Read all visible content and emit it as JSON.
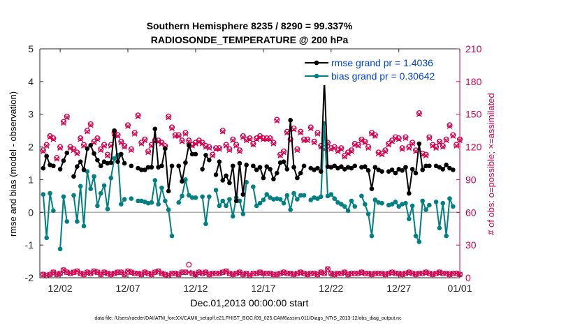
{
  "chart_data": {
    "type": "line",
    "title_line1": "Southern Hemisphere 8235 / 8290 = 99.337%",
    "title_line2": "RADIOSONDE_TEMPERATURE @ 200 hPa",
    "ylabel_left": "rmse and bias (model - observation)",
    "ylabel_right": "# of obs: o=possible; ×=assimilated",
    "xlabel": "Dec.01,2013 00:00:00 start",
    "footer": "data file: /Users/raeder/DAI/ATM_forcXX/CAM6_setup/f.e21.FHIST_BGC.f09_025.CAM6assim.011/Diags_NTrS_2013-12/obs_diag_output.nc",
    "ylim_left": [
      -2,
      5
    ],
    "ylim_right": [
      0,
      210
    ],
    "xlim": [
      0.5,
      31.5
    ],
    "left_ticks": [
      "-2",
      "-1",
      "0",
      "1",
      "2",
      "3",
      "4",
      "5"
    ],
    "left_tick_values": [
      -2,
      -1,
      0,
      1,
      2,
      3,
      4,
      5
    ],
    "right_ticks": [
      "0",
      "30",
      "60",
      "90",
      "120",
      "150",
      "180",
      "210"
    ],
    "right_tick_values": [
      0,
      30,
      60,
      90,
      120,
      150,
      180,
      210
    ],
    "x_ticks": [
      "12/02",
      "12/07",
      "12/12",
      "12/17",
      "12/22",
      "12/27",
      "01/01"
    ],
    "x_tick_values": [
      2,
      7,
      12,
      17,
      22,
      27,
      32
    ],
    "x_start": 0.75,
    "x_step": 0.25,
    "legend": [
      {
        "label": "rmse grand pr = 1.4036",
        "color": "#000000"
      },
      {
        "label": "bias grand pr = 0.30642",
        "color": "#008080"
      }
    ],
    "series": [
      {
        "name": "rmse",
        "color": "#000000",
        "values": [
          1.35,
          1.72,
          1.45,
          1.42,
          null,
          1.32,
          1.58,
          1.82,
          null,
          1.1,
          1.4,
          1.55,
          1.3,
          1.95,
          2.05,
          1.8,
          1.6,
          1.42,
          1.55,
          1.5,
          1.52,
          2.5,
          1.55,
          1.78,
          1.5,
          null,
          1.42,
          null,
          1.35,
          1.3,
          1.3,
          1.38,
          1.38,
          2.55,
          1.38,
          1.42,
          1.95,
          0.65,
          1.42,
          null,
          1.42,
          0.95,
          1.52,
          2.05,
          1.78,
          1.78,
          null,
          1.32,
          1.75,
          1.6,
          null,
          1.15,
          1.55,
          0.98,
          1.12,
          0.9,
          1.42,
          0.35,
          1.5,
          0.55,
          1.45,
          null,
          1.42,
          1.3,
          1.38,
          1.05,
          1.4,
          1.32,
          1.02,
          1.2,
          1.52,
          1.55,
          1.32,
          2.82,
          1.38,
          1.05,
          1.2,
          1.42,
          null,
          1.35,
          1.3,
          1.35,
          1.25,
          4.05,
          1.4,
          1.38,
          1.42,
          1.35,
          1.4,
          1.32,
          1.38,
          1.35,
          1.42,
          null,
          1.38,
          1.4,
          1.28,
          0.72,
          1.38,
          1.3,
          1.25,
          null,
          1.25,
          1.3,
          1.2,
          1.32,
          1.28,
          1.38,
          0.58,
          1.32,
          1.2,
          2.1,
          1.3,
          1.42,
          1.42,
          null,
          1.42,
          1.38,
          1.32,
          1.45,
          1.35,
          1.3
        ]
      },
      {
        "name": "bias",
        "color": "#008080",
        "values": [
          0.55,
          -0.78,
          0.58,
          0.05,
          null,
          -1.12,
          0.48,
          -0.28,
          null,
          0.52,
          -0.28,
          0.8,
          -0.42,
          1.25,
          0.72,
          1.1,
          0.2,
          0.58,
          0.82,
          0.1,
          1.05,
          1.65,
          1.75,
          0.25,
          0.4,
          null,
          0.42,
          null,
          0.35,
          0.35,
          0.32,
          0.28,
          0.3,
          0.98,
          0.25,
          0.75,
          0.35,
          0.08,
          -0.72,
          null,
          0.3,
          0.5,
          1.0,
          0.52,
          0.45,
          0.45,
          null,
          0.48,
          -0.35,
          0.48,
          null,
          0.68,
          0.2,
          0.35,
          0.2,
          0.4,
          -0.12,
          0.45,
          0.35,
          -0.05,
          0.92,
          null,
          0.78,
          0.2,
          0.28,
          0.38,
          0.55,
          0.45,
          0.4,
          0.42,
          0.4,
          0.28,
          0.52,
          0.08,
          0.58,
          0.4,
          0.52,
          0.52,
          null,
          0.38,
          0.45,
          0.42,
          0.48,
          2.72,
          0.5,
          0.55,
          0.42,
          0.3,
          0.25,
          0.18,
          0.05,
          0.35,
          0.18,
          null,
          0.5,
          0.25,
          -0.05,
          -0.72,
          0.38,
          0.3,
          0.28,
          null,
          0.22,
          0.25,
          0.32,
          0.18,
          0.25,
          0.28,
          -0.2,
          0.2,
          -0.72,
          -0.9,
          0.35,
          0.08,
          0.22,
          null,
          0.32,
          -0.48,
          0.28,
          -0.72,
          0.42,
          0.18
        ]
      },
      {
        "name": "possible",
        "color": "#d4004f",
        "values": [
          117,
          122,
          130,
          128,
          110,
          120,
          143,
          148,
          120,
          118,
          115,
          128,
          122,
          135,
          141,
          125,
          128,
          118,
          122,
          113,
          122,
          133,
          131,
          125,
          121,
          140,
          118,
          133,
          149,
          124,
          127,
          116,
          122,
          126,
          126,
          124,
          121,
          148,
          138,
          131,
          131,
          126,
          133,
          126,
          122,
          124,
          126,
          124,
          121,
          120,
          113,
          119,
          119,
          135,
          122,
          118,
          127,
          122,
          117,
          130,
          127,
          128,
          123,
          128,
          130,
          128,
          128,
          128,
          124,
          145,
          113,
          116,
          134,
          127,
          137,
          118,
          134,
          127,
          127,
          138,
          125,
          133,
          121,
          119,
          124,
          119,
          120,
          117,
          119,
          112,
          115,
          117,
          123,
          122,
          127,
          125,
          120,
          133,
          131,
          115,
          114,
          117,
          123,
          126,
          129,
          128,
          119,
          129,
          120,
          124,
          117,
          151,
          114,
          113,
          129,
          122,
          120,
          125,
          121,
          127,
          140,
          131,
          122,
          127
        ]
      },
      {
        "name": "assimilated",
        "color": "#d4004f",
        "values": [
          116,
          121,
          129,
          127,
          109,
          119,
          142,
          147,
          119,
          117,
          114,
          127,
          121,
          134,
          140,
          124,
          127,
          117,
          121,
          112,
          121,
          132,
          130,
          124,
          120,
          139,
          117,
          132,
          148,
          123,
          126,
          115,
          121,
          125,
          125,
          123,
          120,
          147,
          137,
          130,
          130,
          125,
          132,
          125,
          121,
          123,
          125,
          123,
          120,
          119,
          112,
          118,
          118,
          134,
          121,
          117,
          126,
          121,
          116,
          129,
          126,
          127,
          122,
          127,
          129,
          127,
          127,
          127,
          123,
          144,
          112,
          115,
          133,
          126,
          136,
          117,
          133,
          126,
          126,
          137,
          124,
          132,
          120,
          118,
          123,
          118,
          119,
          116,
          118,
          111,
          114,
          116,
          122,
          121,
          126,
          124,
          119,
          132,
          130,
          114,
          113,
          116,
          122,
          125,
          128,
          127,
          118,
          128,
          119,
          123,
          116,
          150,
          113,
          112,
          128,
          121,
          119,
          124,
          120,
          126,
          139,
          130,
          121,
          126
        ]
      },
      {
        "name": "rejected-possible",
        "color": "#d4004f",
        "values": [
          3,
          2,
          3,
          5,
          3,
          4,
          7,
          5,
          4,
          5,
          6,
          4,
          3,
          5,
          4,
          6,
          5,
          3,
          5,
          4,
          3,
          4,
          5,
          5,
          3,
          6,
          5,
          4,
          4,
          3,
          5,
          4,
          3,
          5,
          6,
          4,
          3,
          2,
          4,
          4,
          3,
          5,
          5,
          12,
          4,
          3,
          5,
          4,
          5,
          3,
          4,
          4,
          4,
          5,
          6,
          4,
          3,
          4,
          5,
          3,
          4,
          2,
          4,
          4,
          5,
          4,
          4,
          4,
          3,
          3,
          4,
          5,
          4,
          4,
          3,
          4,
          5,
          4,
          3,
          4,
          4,
          3,
          5,
          4,
          8,
          4,
          3,
          4,
          4,
          5,
          3,
          4,
          4,
          4,
          5,
          4,
          4,
          3,
          4,
          4,
          4,
          3,
          4,
          5,
          4,
          4,
          3,
          4,
          5,
          4,
          3,
          4,
          4,
          5,
          4,
          3,
          4,
          5,
          4,
          4,
          3,
          4,
          4,
          3
        ]
      },
      {
        "name": "rejected-assimilated",
        "color": "#d4004f",
        "values": [
          3,
          2,
          3,
          5,
          3,
          4,
          7,
          5,
          4,
          5,
          6,
          4,
          3,
          5,
          4,
          6,
          5,
          3,
          5,
          4,
          3,
          4,
          5,
          5,
          3,
          6,
          5,
          4,
          4,
          3,
          5,
          4,
          3,
          5,
          6,
          4,
          3,
          2,
          4,
          4,
          3,
          5,
          5,
          5,
          4,
          3,
          5,
          4,
          5,
          3,
          4,
          4,
          4,
          5,
          6,
          4,
          3,
          4,
          5,
          3,
          4,
          2,
          4,
          4,
          5,
          4,
          4,
          4,
          3,
          3,
          4,
          5,
          4,
          4,
          3,
          4,
          5,
          4,
          3,
          4,
          4,
          3,
          5,
          4,
          8,
          4,
          3,
          4,
          4,
          5,
          3,
          4,
          4,
          4,
          5,
          4,
          4,
          3,
          4,
          4,
          4,
          3,
          4,
          5,
          4,
          4,
          3,
          4,
          5,
          4,
          3,
          4,
          4,
          5,
          4,
          3,
          4,
          5,
          4,
          4,
          3,
          4,
          4,
          3
        ]
      }
    ]
  }
}
